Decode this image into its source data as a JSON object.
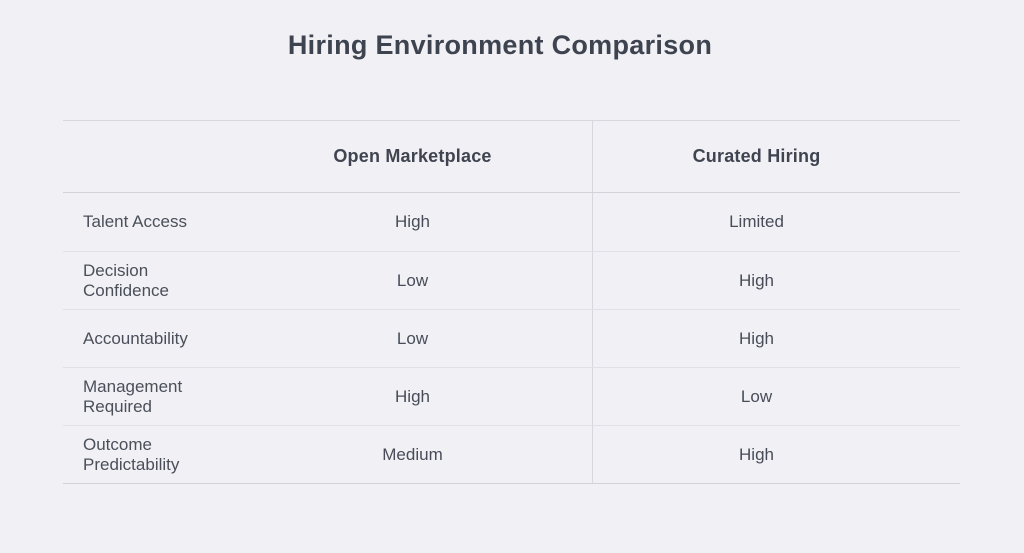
{
  "title": "Hiring Environment Comparison",
  "table": {
    "columns": [
      "",
      "Open Marketplace",
      "Curated Hiring"
    ],
    "rows": [
      {
        "label": "Talent Access",
        "cells": [
          "High",
          "Limited"
        ]
      },
      {
        "label": "Decision Confidence",
        "cells": [
          "Low",
          "High"
        ]
      },
      {
        "label": "Accountability",
        "cells": [
          "Low",
          "High"
        ]
      },
      {
        "label": "Management Required",
        "cells": [
          "High",
          "Low"
        ]
      },
      {
        "label": "Outcome Predictability",
        "cells": [
          "Medium",
          "High"
        ]
      }
    ]
  },
  "colors": {
    "background": "#f1f1f5",
    "title_text": "#3e4350",
    "header_text": "#3f4450",
    "body_text": "#4a4f5a",
    "border_strong": "#d2d3d9",
    "border_light": "#e0e1e6"
  },
  "chart_data": {
    "type": "table",
    "title": "Hiring Environment Comparison",
    "columns": [
      "Open Marketplace",
      "Curated Hiring"
    ],
    "row_labels": [
      "Talent Access",
      "Decision Confidence",
      "Accountability",
      "Management Required",
      "Outcome Predictability"
    ],
    "values": [
      [
        "High",
        "Limited"
      ],
      [
        "Low",
        "High"
      ],
      [
        "Low",
        "High"
      ],
      [
        "High",
        "Low"
      ],
      [
        "Medium",
        "High"
      ]
    ]
  }
}
